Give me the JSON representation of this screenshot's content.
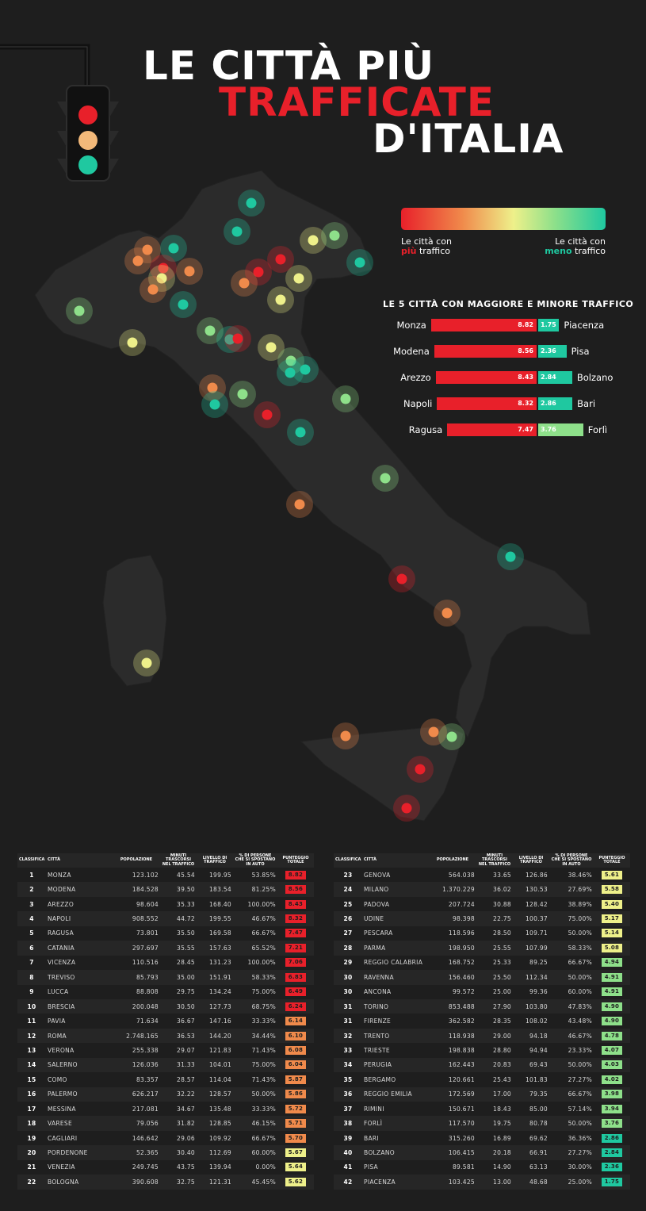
{
  "header": {
    "line1": "LE CITTÀ PIÙ",
    "line2": "TRAFFICATE",
    "line3": "D'ITALIA"
  },
  "legend": {
    "left_prefix": "Le città con",
    "left_highlight": "più",
    "left_suffix": "traffico",
    "right_prefix": "Le città con",
    "right_highlight": "meno",
    "right_suffix": "traffico"
  },
  "colors": {
    "red": "#e8202a",
    "orange": "#f08a4b",
    "yellow": "#eef08a",
    "lightgreen": "#8ee08a",
    "teal": "#1fc8a0"
  },
  "top5": {
    "title": "LE 5 CITTÀ CON MAGGIORE E MINORE TRAFFICO",
    "rows": [
      {
        "most_city": "Monza",
        "most_score": "8.82",
        "least_city": "Piacenza",
        "least_score": "1.75"
      },
      {
        "most_city": "Modena",
        "most_score": "8.56",
        "least_city": "Pisa",
        "least_score": "2.36"
      },
      {
        "most_city": "Arezzo",
        "most_score": "8.43",
        "least_city": "Bolzano",
        "least_score": "2.84"
      },
      {
        "most_city": "Napoli",
        "most_score": "8.32",
        "least_city": "Bari",
        "least_score": "2.86"
      },
      {
        "most_city": "Ragusa",
        "most_score": "7.47",
        "least_city": "Forlì",
        "least_score": "3.76"
      }
    ]
  },
  "table": {
    "headers": [
      "CLASSIFICA",
      "CITTÀ",
      "POPOLAZIONE",
      "MINUTI TRASCORSI NEL TRAFFICO",
      "LIVELLO DI TRAFFICO",
      "% DI PERSONE CHE SI SPOSTANO IN AUTO",
      "PUNTEGGIO TOTALE"
    ],
    "rows": [
      [
        "1",
        "MONZA",
        "123.102",
        "45.54",
        "199.95",
        "53.85%",
        "8.82"
      ],
      [
        "2",
        "MODENA",
        "184.528",
        "39.50",
        "183.54",
        "81.25%",
        "8.56"
      ],
      [
        "3",
        "AREZZO",
        "98.604",
        "35.33",
        "168.40",
        "100.00%",
        "8.43"
      ],
      [
        "4",
        "NAPOLI",
        "908.552",
        "44.72",
        "199.55",
        "46.67%",
        "8.32"
      ],
      [
        "5",
        "RAGUSA",
        "73.801",
        "35.50",
        "169.58",
        "66.67%",
        "7.47"
      ],
      [
        "6",
        "CATANIA",
        "297.697",
        "35.55",
        "157.63",
        "65.52%",
        "7.21"
      ],
      [
        "7",
        "VICENZA",
        "110.516",
        "28.45",
        "131.23",
        "100.00%",
        "7.06"
      ],
      [
        "8",
        "TREVISO",
        "85.793",
        "35.00",
        "151.91",
        "58.33%",
        "6.83"
      ],
      [
        "9",
        "LUCCA",
        "88.808",
        "29.75",
        "134.24",
        "75.00%",
        "6.49"
      ],
      [
        "10",
        "BRESCIA",
        "200.048",
        "30.50",
        "127.73",
        "68.75%",
        "6.24"
      ],
      [
        "11",
        "PAVIA",
        "71.634",
        "36.67",
        "147.16",
        "33.33%",
        "6.14"
      ],
      [
        "12",
        "ROMA",
        "2.748.165",
        "36.53",
        "144.20",
        "34.44%",
        "6.10"
      ],
      [
        "13",
        "VERONA",
        "255.338",
        "29.07",
        "121.83",
        "71.43%",
        "6.08"
      ],
      [
        "14",
        "SALERNO",
        "126.036",
        "31.33",
        "104.01",
        "75.00%",
        "6.04"
      ],
      [
        "15",
        "COMO",
        "83.357",
        "28.57",
        "114.04",
        "71.43%",
        "5.87"
      ],
      [
        "16",
        "PALERMO",
        "626.217",
        "32.22",
        "128.57",
        "50.00%",
        "5.86"
      ],
      [
        "17",
        "MESSINA",
        "217.081",
        "34.67",
        "135.48",
        "33.33%",
        "5.72"
      ],
      [
        "18",
        "VARESE",
        "79.056",
        "31.82",
        "128.85",
        "46.15%",
        "5.71"
      ],
      [
        "19",
        "CAGLIARI",
        "146.642",
        "29.06",
        "109.92",
        "66.67%",
        "5.70"
      ],
      [
        "20",
        "PORDENONE",
        "52.365",
        "30.40",
        "112.69",
        "60.00%",
        "5.67"
      ],
      [
        "21",
        "VENEZIA",
        "249.745",
        "43.75",
        "139.94",
        "0.00%",
        "5.64"
      ],
      [
        "22",
        "BOLOGNA",
        "390.608",
        "32.75",
        "121.31",
        "45.45%",
        "5.62"
      ],
      [
        "23",
        "GENOVA",
        "564.038",
        "33.65",
        "126.86",
        "38.46%",
        "5.61"
      ],
      [
        "24",
        "MILANO",
        "1.370.229",
        "36.02",
        "130.53",
        "27.69%",
        "5.58"
      ],
      [
        "25",
        "PADOVA",
        "207.724",
        "30.88",
        "128.42",
        "38.89%",
        "5.40"
      ],
      [
        "26",
        "UDINE",
        "98.398",
        "22.75",
        "100.37",
        "75.00%",
        "5.17"
      ],
      [
        "27",
        "PESCARA",
        "118.596",
        "28.50",
        "109.71",
        "50.00%",
        "5.14"
      ],
      [
        "28",
        "PARMA",
        "198.950",
        "25.55",
        "107.99",
        "58.33%",
        "5.08"
      ],
      [
        "29",
        "REGGIO CALABRIA",
        "168.752",
        "25.33",
        "89.25",
        "66.67%",
        "4.94"
      ],
      [
        "30",
        "RAVENNA",
        "156.460",
        "25.50",
        "112.34",
        "50.00%",
        "4.91"
      ],
      [
        "30",
        "ANCONA",
        "99.572",
        "25.00",
        "99.36",
        "60.00%",
        "4.91"
      ],
      [
        "31",
        "TORINO",
        "853.488",
        "27.90",
        "103.80",
        "47.83%",
        "4.90"
      ],
      [
        "31",
        "FIRENZE",
        "362.582",
        "28.35",
        "108.02",
        "43.48%",
        "4.90"
      ],
      [
        "32",
        "TRENTO",
        "118.938",
        "29.00",
        "94.18",
        "46.67%",
        "4.78"
      ],
      [
        "33",
        "TRIESTE",
        "198.838",
        "28.80",
        "94.94",
        "23.33%",
        "4.07"
      ],
      [
        "34",
        "PERUGIA",
        "162.443",
        "20.83",
        "69.43",
        "50.00%",
        "4.03"
      ],
      [
        "35",
        "BERGAMO",
        "120.661",
        "25.43",
        "101.83",
        "27.27%",
        "4.02"
      ],
      [
        "36",
        "REGGIO EMILIA",
        "172.569",
        "17.00",
        "79.35",
        "66.67%",
        "3.98"
      ],
      [
        "37",
        "RIMINI",
        "150.671",
        "18.43",
        "85.00",
        "57.14%",
        "3.94"
      ],
      [
        "38",
        "FORLÌ",
        "117.570",
        "19.75",
        "80.78",
        "50.00%",
        "3.76"
      ],
      [
        "39",
        "BARI",
        "315.260",
        "16.89",
        "69.62",
        "36.36%",
        "2.86"
      ],
      [
        "40",
        "BOLZANO",
        "106.415",
        "20.18",
        "66.91",
        "27.27%",
        "2.84"
      ],
      [
        "41",
        "PISA",
        "89.581",
        "14.90",
        "63.13",
        "30.00%",
        "2.36"
      ],
      [
        "42",
        "PIACENZA",
        "103.425",
        "13.00",
        "48.68",
        "25.00%",
        "1.75"
      ]
    ]
  }
}
